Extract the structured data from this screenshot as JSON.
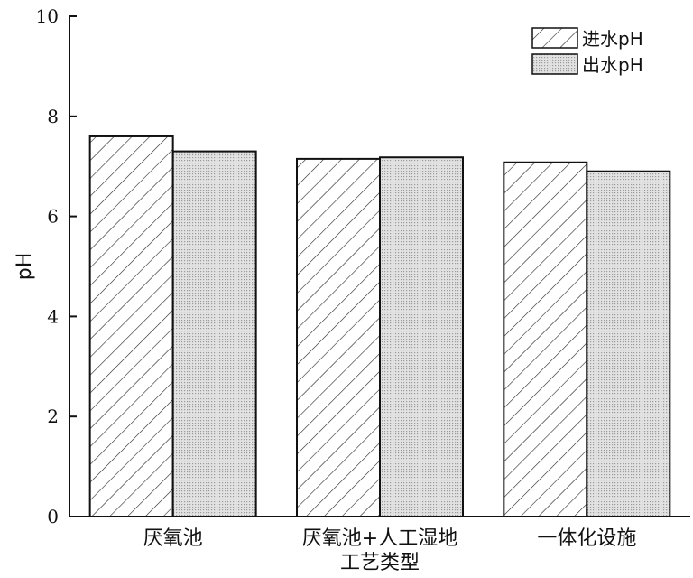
{
  "chart_data": {
    "type": "bar",
    "xlabel": "工艺类型",
    "ylabel": "pH",
    "ylim": [
      0,
      10
    ],
    "yticks": [
      "0",
      "2",
      "4",
      "6",
      "8",
      "10"
    ],
    "categories": [
      "厌氧池",
      "厌氧池+人工湿地",
      "一体化设施"
    ],
    "series": [
      {
        "name": "进水pH",
        "values": [
          7.6,
          7.15,
          7.08
        ],
        "pattern": "diagonal-hatch"
      },
      {
        "name": "出水pH",
        "values": [
          7.3,
          7.18,
          6.9
        ],
        "pattern": "gray-dots"
      }
    ],
    "legend_position": "top-right",
    "grid": false
  }
}
